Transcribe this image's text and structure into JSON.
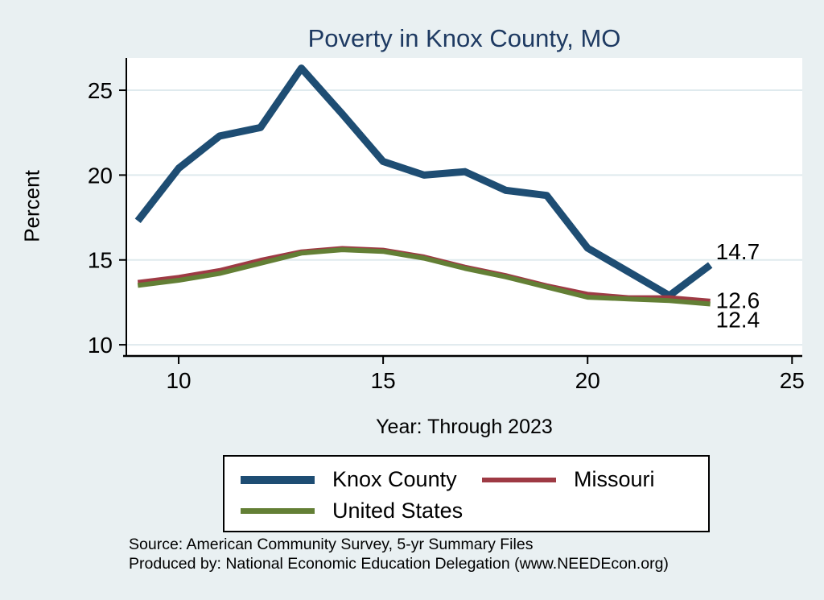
{
  "title": "Poverty in Knox County, MO",
  "chart_data": {
    "type": "line",
    "title": "Poverty in Knox County, MO",
    "xlabel": "Year: Through 2023",
    "ylabel": "Percent",
    "x": [
      9,
      10,
      11,
      12,
      13,
      14,
      15,
      16,
      17,
      18,
      19,
      20,
      21,
      22,
      23
    ],
    "series": [
      {
        "name": "Knox County",
        "color": "#1e4d73",
        "width": 9,
        "values": [
          17.3,
          20.4,
          22.3,
          22.8,
          26.3,
          23.6,
          20.8,
          20.0,
          20.2,
          19.1,
          18.8,
          15.7,
          14.3,
          12.9,
          14.7
        ],
        "end_label": "14.7",
        "end_label_dy": -17
      },
      {
        "name": "Missouri",
        "color": "#9e3a44",
        "width": 5,
        "values": [
          13.7,
          14.0,
          14.4,
          15.0,
          15.5,
          15.7,
          15.6,
          15.2,
          14.6,
          14.1,
          13.5,
          13.0,
          12.8,
          12.8,
          12.6
        ],
        "end_label": "12.6",
        "end_label_dy": -1
      },
      {
        "name": "United States",
        "color": "#637f35",
        "width": 6,
        "values": [
          13.5,
          13.8,
          14.2,
          14.8,
          15.4,
          15.6,
          15.5,
          15.1,
          14.5,
          14.0,
          13.4,
          12.8,
          12.7,
          12.6,
          12.4
        ],
        "end_label": "12.4",
        "end_label_dy": 19
      }
    ],
    "x_ticks": [
      10,
      15,
      20,
      25
    ],
    "y_ticks": [
      10,
      15,
      20,
      25
    ],
    "xlim": [
      8.72,
      25.25
    ],
    "ylim": [
      9.34,
      26.9
    ],
    "grid": true,
    "legend_position": "bottom-center"
  },
  "footer": {
    "source": "Source: American Community Survey, 5-yr Summary Files",
    "produced_by": "Produced by: National Economic Education Delegation (www.NEEDEcon.org)"
  },
  "colors": {
    "background": "#e9f0f2",
    "plot_background": "#ffffff",
    "gridline": "#dfeaee",
    "title": "#1e3a62",
    "axis": "#000000"
  }
}
